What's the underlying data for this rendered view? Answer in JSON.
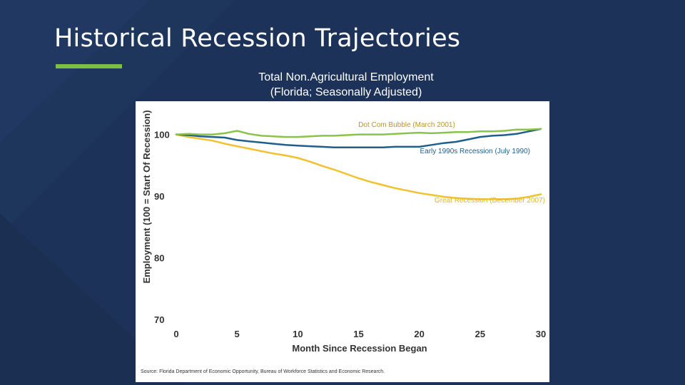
{
  "slide": {
    "title": "Historical Recession Trajectories"
  },
  "colors": {
    "background": "#1c3259",
    "accent": "#7cbf45",
    "dot_com": "#8bc34a",
    "early_1990s": "#1f5f8b",
    "great_recession": "#f2c12e"
  },
  "chart_data": {
    "type": "line",
    "title_line1": "Total Non.Agricultural Employment",
    "title_line2": "(Florida; Seasonally Adjusted)",
    "xlabel": "Month Since Recession Began",
    "ylabel": "Employment (100 = Start Of Recession)",
    "xlim": [
      0,
      30
    ],
    "ylim": [
      70,
      101
    ],
    "x_ticks": [
      0,
      5,
      10,
      15,
      20,
      25,
      30
    ],
    "y_ticks": [
      70,
      80,
      90,
      100
    ],
    "grid": false,
    "x": [
      0,
      1,
      2,
      3,
      4,
      5,
      6,
      7,
      8,
      9,
      10,
      11,
      12,
      13,
      14,
      15,
      16,
      17,
      18,
      19,
      20,
      21,
      22,
      23,
      24,
      25,
      26,
      27,
      28,
      29,
      30
    ],
    "series": [
      {
        "name": "Dot Com Bubble (March 2001)",
        "color": "#8bc34a",
        "values": [
          100,
          100.1,
          100,
          100,
          100.2,
          100.6,
          100.1,
          99.8,
          99.7,
          99.6,
          99.6,
          99.7,
          99.8,
          99.8,
          99.9,
          100.0,
          100.0,
          100.0,
          100.1,
          100.2,
          100.3,
          100.2,
          100.3,
          100.4,
          100.4,
          100.5,
          100.5,
          100.6,
          100.8,
          100.8,
          100.9
        ]
      },
      {
        "name": "Early 1990s Recession (July 1990)",
        "color": "#1f5f8b",
        "values": [
          100,
          99.9,
          99.7,
          99.6,
          99.5,
          99.1,
          98.9,
          98.7,
          98.5,
          98.3,
          98.2,
          98.1,
          98.0,
          97.9,
          97.9,
          97.9,
          97.9,
          97.9,
          98.0,
          98.0,
          98.0,
          98.3,
          98.6,
          98.8,
          99.2,
          99.6,
          99.8,
          99.9,
          100.1,
          100.5,
          100.9
        ]
      },
      {
        "name": "Great Recession (December 2007)",
        "color": "#f2c12e",
        "values": [
          100,
          99.6,
          99.3,
          99.0,
          98.5,
          98.1,
          97.7,
          97.3,
          96.9,
          96.6,
          96.2,
          95.6,
          94.9,
          94.3,
          93.6,
          92.9,
          92.3,
          91.8,
          91.3,
          90.9,
          90.5,
          90.2,
          89.9,
          89.7,
          89.6,
          89.5,
          89.5,
          89.5,
          89.6,
          89.9,
          90.3
        ]
      }
    ],
    "annotations": [
      "Dot Com Bubble (March 2001)",
      "Early 1990s Recession (July 1990)",
      "Great Recession (December 2007)"
    ],
    "source": "Source: Florida Department of Economic Opportunity, Bureau of Workforce Statistics and Economic Research."
  }
}
